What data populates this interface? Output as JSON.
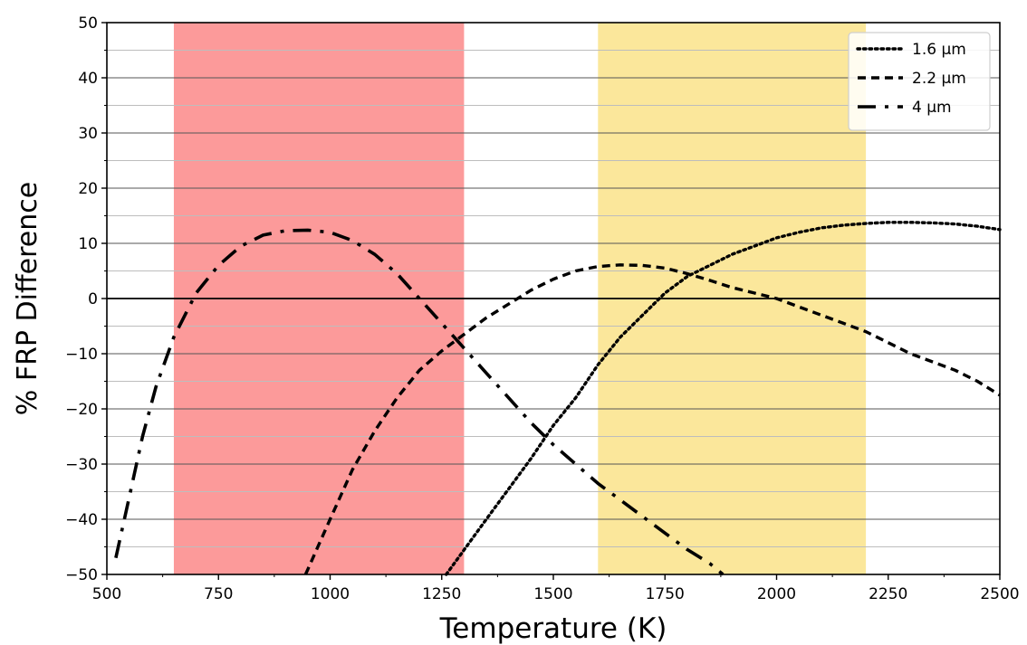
{
  "chart_data": {
    "type": "line",
    "title": "",
    "xlabel": "Temperature (K)",
    "ylabel": "% FRP Difference",
    "xlim": [
      500,
      2500
    ],
    "ylim": [
      -50,
      50
    ],
    "x_ticks": [
      500,
      750,
      1000,
      1250,
      1500,
      1750,
      2000,
      2250,
      2500
    ],
    "x_tick_labels": [
      "500",
      "750",
      "1000",
      "1250",
      "1500",
      "1750",
      "2000",
      "2250",
      "2500"
    ],
    "y_ticks": [
      -50,
      -40,
      -30,
      -20,
      -10,
      0,
      10,
      20,
      30,
      40,
      50
    ],
    "y_tick_labels": [
      "−50",
      "−40",
      "−30",
      "−20",
      "−10",
      "0",
      "10",
      "20",
      "30",
      "40",
      "50"
    ],
    "grid": true,
    "legend_position": "top-right",
    "shaded_regions": [
      {
        "x_start": 650,
        "x_end": 1300,
        "color": "#fc9a9a"
      },
      {
        "x_start": 1600,
        "x_end": 2200,
        "color": "#fbe79b"
      }
    ],
    "series": [
      {
        "name": "1.6 μm",
        "style": "dotted",
        "points": [
          [
            1260,
            -50
          ],
          [
            1350,
            -40
          ],
          [
            1450,
            -29
          ],
          [
            1500,
            -23
          ],
          [
            1550,
            -18
          ],
          [
            1600,
            -12
          ],
          [
            1650,
            -7
          ],
          [
            1700,
            -3
          ],
          [
            1750,
            1
          ],
          [
            1800,
            4
          ],
          [
            1850,
            6
          ],
          [
            1900,
            8
          ],
          [
            1950,
            9.5
          ],
          [
            2000,
            11
          ],
          [
            2050,
            12
          ],
          [
            2100,
            12.8
          ],
          [
            2150,
            13.3
          ],
          [
            2200,
            13.6
          ],
          [
            2250,
            13.8
          ],
          [
            2300,
            13.8
          ],
          [
            2350,
            13.7
          ],
          [
            2400,
            13.5
          ],
          [
            2450,
            13.1
          ],
          [
            2500,
            12.5
          ]
        ]
      },
      {
        "name": "2.2 μm",
        "style": "dashed",
        "points": [
          [
            945,
            -50
          ],
          [
            1000,
            -40
          ],
          [
            1050,
            -31
          ],
          [
            1100,
            -24
          ],
          [
            1150,
            -18
          ],
          [
            1200,
            -13
          ],
          [
            1250,
            -9.5
          ],
          [
            1300,
            -6.5
          ],
          [
            1350,
            -3.5
          ],
          [
            1400,
            -1
          ],
          [
            1450,
            1.5
          ],
          [
            1500,
            3.5
          ],
          [
            1550,
            5
          ],
          [
            1600,
            5.8
          ],
          [
            1650,
            6.1
          ],
          [
            1700,
            6
          ],
          [
            1750,
            5.5
          ],
          [
            1800,
            4.5
          ],
          [
            1850,
            3.3
          ],
          [
            1900,
            2
          ],
          [
            1950,
            1
          ],
          [
            2000,
            0
          ],
          [
            2050,
            -1.5
          ],
          [
            2100,
            -3
          ],
          [
            2150,
            -4.5
          ],
          [
            2200,
            -6
          ],
          [
            2250,
            -8
          ],
          [
            2300,
            -10
          ],
          [
            2350,
            -11.5
          ],
          [
            2400,
            -13
          ],
          [
            2450,
            -15
          ],
          [
            2500,
            -17.5
          ]
        ]
      },
      {
        "name": "4 μm",
        "style": "dashdot",
        "points": [
          [
            520,
            -47
          ],
          [
            550,
            -36
          ],
          [
            580,
            -25
          ],
          [
            610,
            -16
          ],
          [
            650,
            -7
          ],
          [
            700,
            1
          ],
          [
            750,
            6
          ],
          [
            800,
            9.5
          ],
          [
            850,
            11.5
          ],
          [
            900,
            12.3
          ],
          [
            950,
            12.4
          ],
          [
            1000,
            12
          ],
          [
            1050,
            10.5
          ],
          [
            1100,
            8
          ],
          [
            1150,
            4.5
          ],
          [
            1200,
            0
          ],
          [
            1250,
            -4.5
          ],
          [
            1300,
            -9
          ],
          [
            1350,
            -13.5
          ],
          [
            1400,
            -18
          ],
          [
            1450,
            -22.5
          ],
          [
            1500,
            -26.5
          ],
          [
            1550,
            -30
          ],
          [
            1600,
            -33.5
          ],
          [
            1650,
            -36.5
          ],
          [
            1700,
            -39.5
          ],
          [
            1750,
            -42.5
          ],
          [
            1800,
            -45.5
          ],
          [
            1850,
            -48
          ],
          [
            1880,
            -50
          ]
        ]
      }
    ]
  }
}
